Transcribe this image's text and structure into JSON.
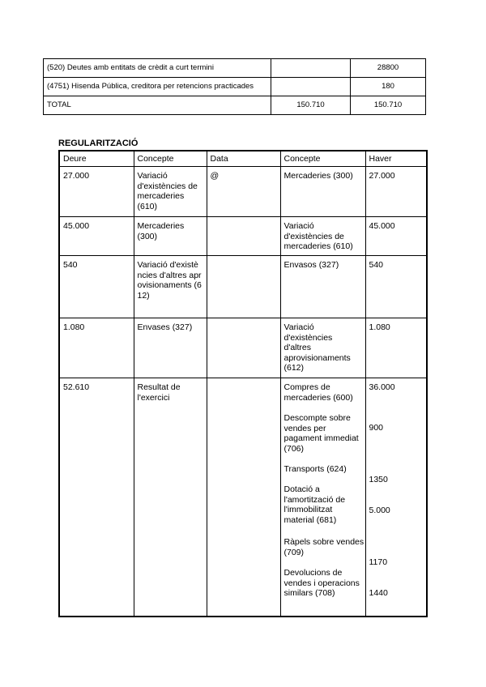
{
  "top_table": {
    "rows": [
      {
        "concept": "(520) Deutes amb entitats de crèdit a curt termini",
        "deure": "",
        "haver": "28800"
      },
      {
        "concept": "(4751) Hisenda Pública, creditora per retencions practicades",
        "deure": "",
        "haver": "180"
      },
      {
        "concept": "TOTAL",
        "deure": "150.710",
        "haver": "150.710"
      }
    ]
  },
  "regularitzacio": {
    "title": "REGULARITZACIÓ",
    "headers": [
      "Deure",
      "Concepte",
      "Data",
      "Concepte",
      "Haver"
    ],
    "rows": [
      {
        "deure": "27.000",
        "concepte_deure": "Variació d'existències de mercaderies (610)",
        "data": "@",
        "concepte_haver": "Mercaderies (300)",
        "haver": "27.000"
      },
      {
        "deure": "45.000",
        "concepte_deure": "Mercaderies (300)",
        "data": "",
        "concepte_haver": "Variació d'existències de mercaderies (610)",
        "haver": "45.000"
      },
      {
        "deure": "540",
        "concepte_deure": "Variació d'existències d'altres aprovisionaments (612)",
        "data": "",
        "concepte_haver": "Envasos (327)",
        "haver": "540"
      },
      {
        "deure": "1.080",
        "concepte_deure": "Envases (327)",
        "data": "",
        "concepte_haver": "Variació d'existències d'altres aprovisionaments (612)",
        "haver": "1.080"
      }
    ],
    "last_row": {
      "deure": "52.610",
      "concepte_deure": "Resultat de l'exercici",
      "data": "",
      "haver_items": [
        {
          "concept": "Compres de mercaderies (600)",
          "value": "36.000"
        },
        {
          "concept": "Descompte sobre vendes per pagament immediat (706)",
          "value": "900"
        },
        {
          "concept": "Transports (624)",
          "value": "1350"
        },
        {
          "concept": "Dotació a l'amortització de l'immobilitzat material (681)",
          "value": "5.000"
        },
        {
          "concept": "Ràpels sobre vendes (709)",
          "value": "1170"
        },
        {
          "concept": "Devolucions de vendes i operacions similars (708)",
          "value": "1440"
        }
      ]
    }
  }
}
